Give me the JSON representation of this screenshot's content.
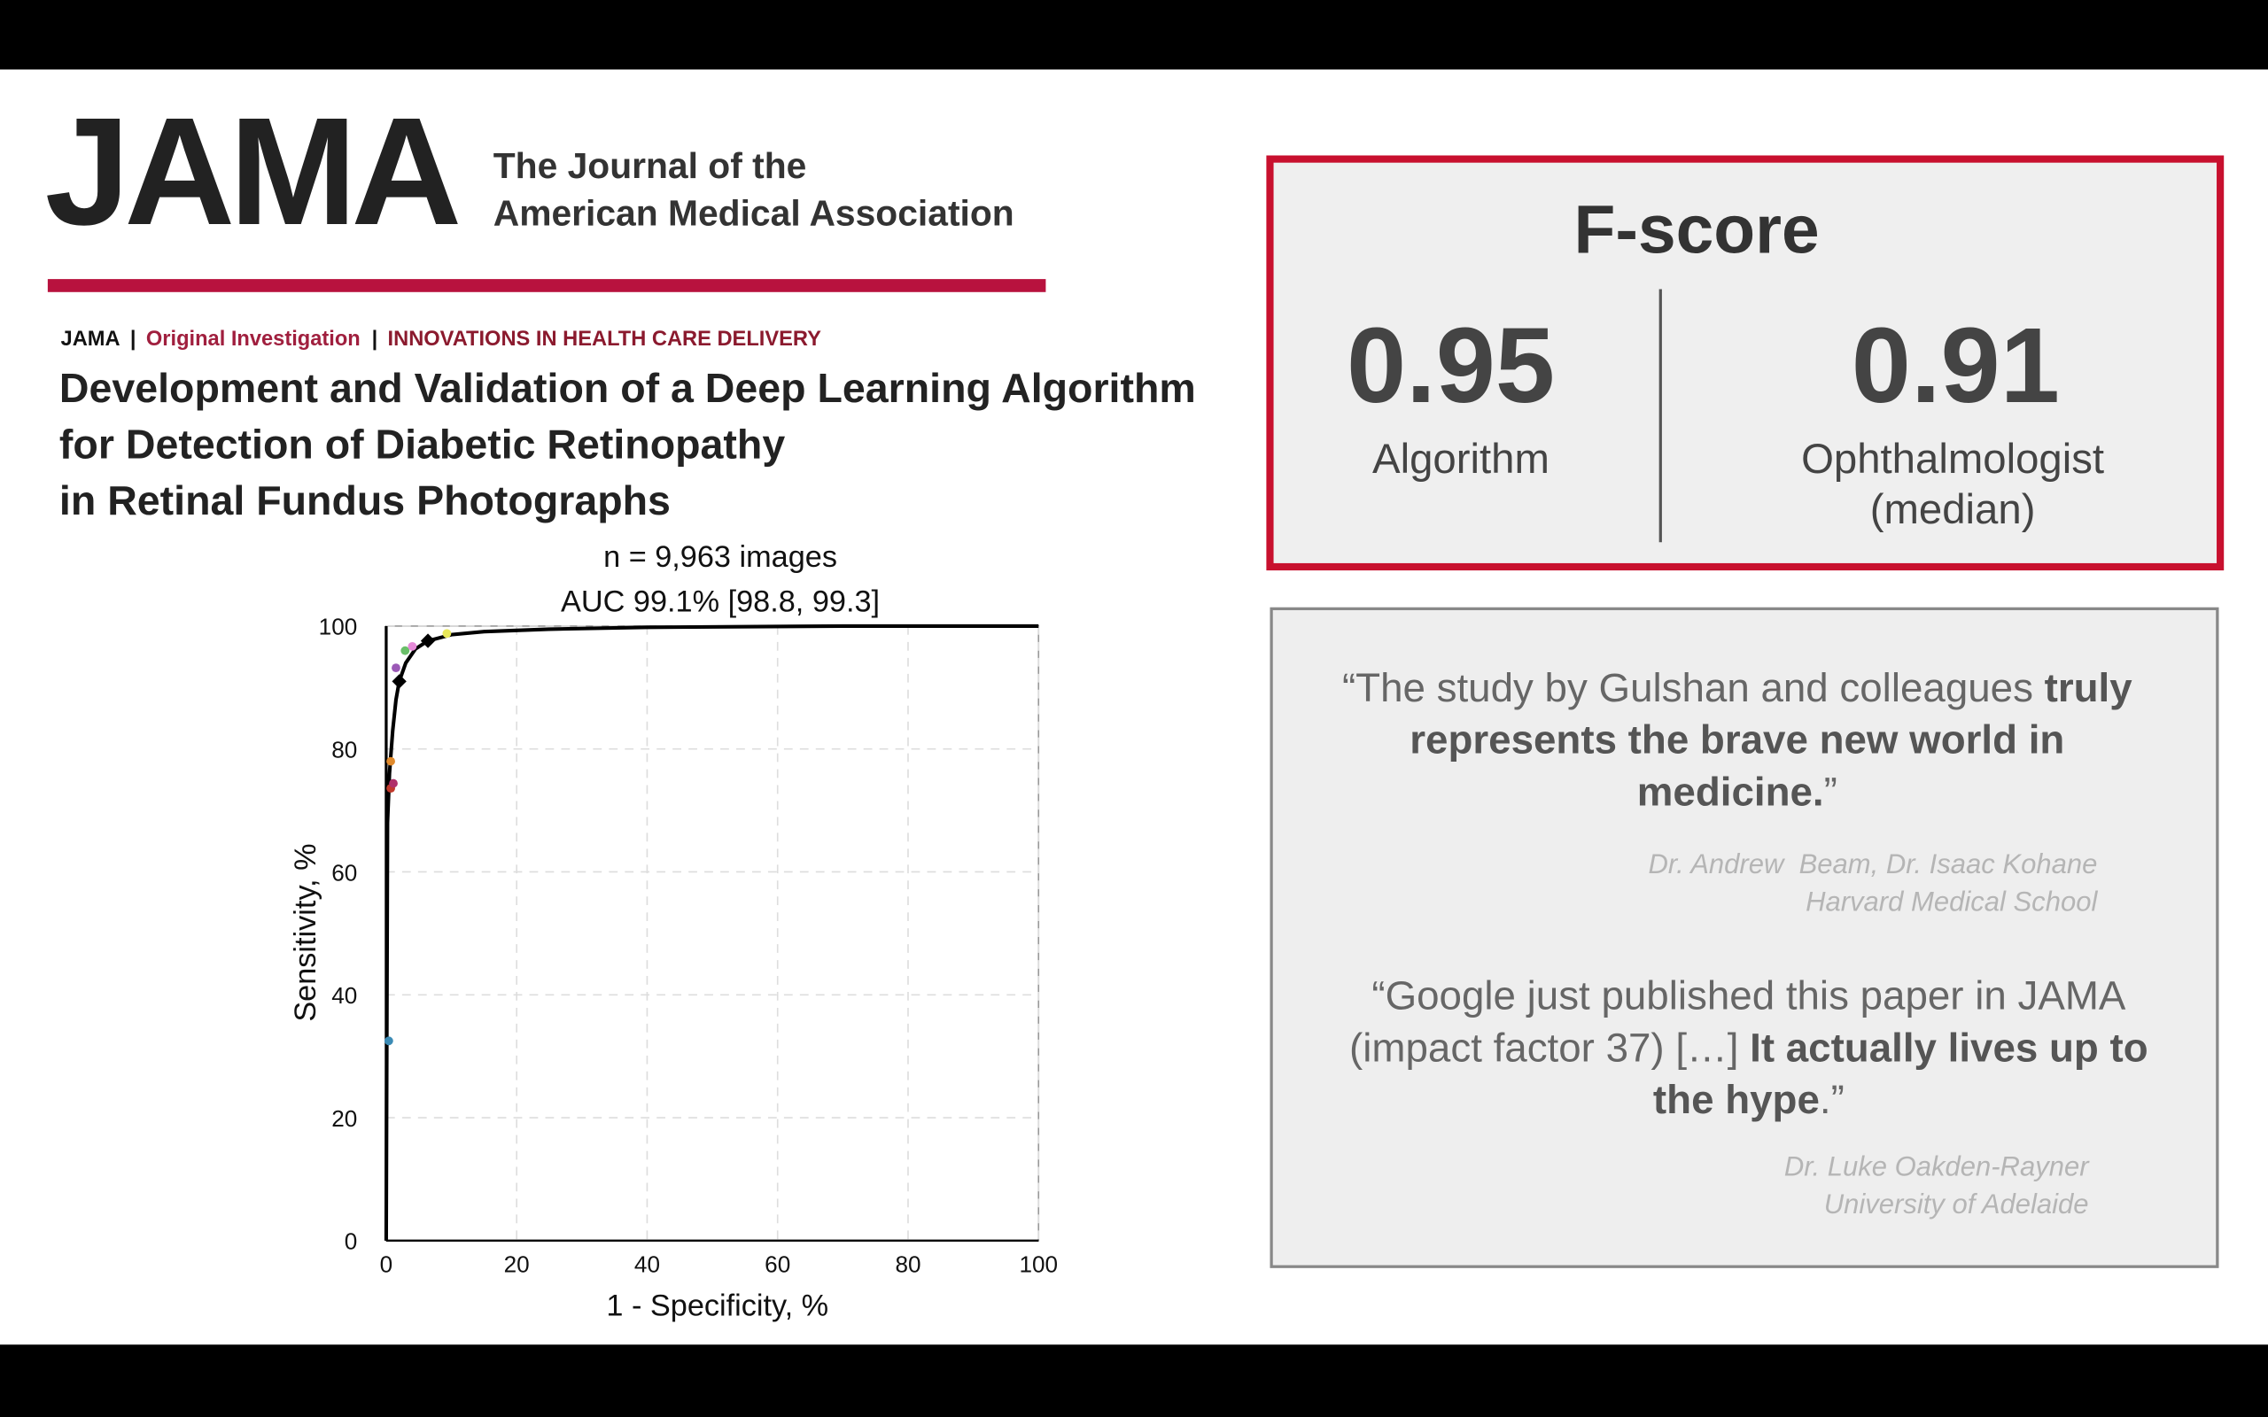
{
  "header": {
    "logo": "JAMA",
    "subtitle_lines": [
      "The Journal of the",
      "American Medical Association"
    ]
  },
  "article": {
    "journal": "JAMA",
    "separator": "|",
    "section": "Original Investigation",
    "category": "INNOVATIONS IN HEALTH CARE DELIVERY",
    "title_lines": [
      "Development and Validation of a Deep Learning Algorithm",
      "for Detection of Diabetic Retinopathy",
      "in Retinal Fundus Photographs"
    ]
  },
  "chart_data": {
    "type": "line",
    "annotations": [
      "n = 9,963 images",
      "AUC 99.1% [98.8, 99.3]"
    ],
    "x_label": "1 - Specificity, %",
    "y_label": "Sensitivity, %",
    "xlim": [
      0,
      100
    ],
    "ylim": [
      0,
      100
    ],
    "xticks": [
      0,
      20,
      40,
      60,
      80,
      100
    ],
    "yticks": [
      0,
      20,
      40,
      60,
      80,
      100
    ],
    "grid": true,
    "series": [
      {
        "style": "line",
        "color": "#000000",
        "x": [
          0,
          0.2,
          0.5,
          1,
          1.5,
          2,
          3,
          4.5,
          6.4,
          10,
          15,
          25,
          40,
          70,
          100
        ],
        "values": [
          0,
          68,
          76,
          83,
          88,
          91,
          94,
          96.3,
          97.6,
          98.6,
          99.1,
          99.5,
          99.8,
          100,
          100
        ]
      },
      {
        "style": "diamond",
        "color": "#000000",
        "x": [
          2,
          6.4
        ],
        "values": [
          91,
          97.6
        ]
      },
      {
        "style": "dot",
        "color": "#3b8bb5",
        "x": [
          0.4
        ],
        "values": [
          32.5
        ]
      },
      {
        "style": "dot",
        "color": "#c0392b",
        "x": [
          0.7
        ],
        "values": [
          73.6
        ]
      },
      {
        "style": "dot",
        "color": "#b0306a",
        "x": [
          1.1
        ],
        "values": [
          74.4
        ]
      },
      {
        "style": "dot",
        "color": "#e08a2c",
        "x": [
          0.7
        ],
        "values": [
          78
        ]
      },
      {
        "style": "dot",
        "color": "#9b59b6",
        "x": [
          1.5
        ],
        "values": [
          93.2
        ]
      },
      {
        "style": "dot",
        "color": "#6abf69",
        "x": [
          2.9
        ],
        "values": [
          96
        ]
      },
      {
        "style": "dot",
        "color": "#e58ad8",
        "x": [
          4
        ],
        "values": [
          96.7
        ]
      },
      {
        "style": "dot",
        "color": "#e8e85a",
        "x": [
          9.3
        ],
        "values": [
          98.8
        ]
      }
    ]
  },
  "fscore": {
    "title": "F-score",
    "items": [
      {
        "value": 0.95,
        "label_lines": [
          "Algorithm"
        ]
      },
      {
        "value": 0.91,
        "label_lines": [
          "Ophthalmologist",
          "(median)"
        ]
      }
    ]
  },
  "quotes": [
    {
      "lines": [
        [
          {
            "text": "“The study by Gulshan and colleagues ",
            "bold": false
          },
          {
            "text": "truly",
            "bold": true
          }
        ],
        [
          {
            "text": "represents the brave new world in",
            "bold": true
          }
        ],
        [
          {
            "text": "medicine.",
            "bold": true
          },
          {
            "text": "”",
            "bold": false
          }
        ]
      ],
      "attribution_lines": [
        "Dr. Andrew  Beam, Dr. Isaac Kohane",
        "Harvard Medical School"
      ]
    },
    {
      "lines": [
        [
          {
            "text": "“Google just published this paper in JAMA",
            "bold": false
          }
        ],
        [
          {
            "text": "(impact factor 37) […] ",
            "bold": false
          },
          {
            "text": "It actually lives up to",
            "bold": true
          }
        ],
        [
          {
            "text": "the hype",
            "bold": true
          },
          {
            "text": ".”",
            "bold": false
          }
        ]
      ],
      "attribution_lines": [
        "Dr. Luke Oakden-Rayner",
        "University of Adelaide"
      ]
    }
  ]
}
